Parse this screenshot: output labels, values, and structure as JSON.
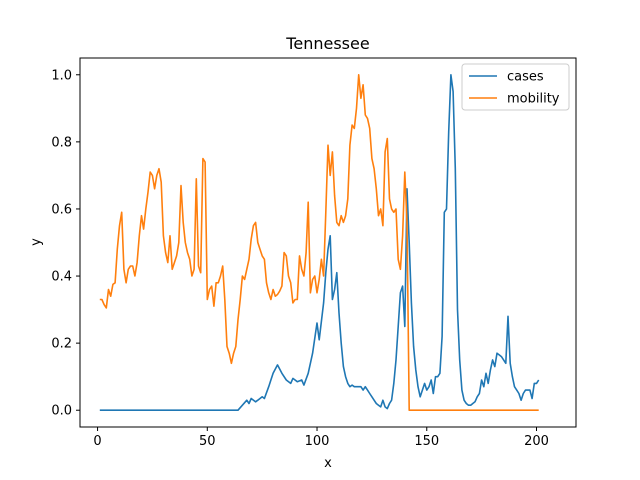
{
  "chart_data": {
    "type": "line",
    "title": "Tennessee",
    "xlabel": "x",
    "ylabel": "y",
    "xlim": [
      -8,
      218
    ],
    "ylim": [
      -0.05,
      1.05
    ],
    "xticks": [
      0,
      50,
      100,
      150,
      200
    ],
    "yticks": [
      0.0,
      0.2,
      0.4,
      0.6,
      0.8,
      1.0
    ],
    "xtick_labels": [
      "0",
      "50",
      "100",
      "150",
      "200"
    ],
    "ytick_labels": [
      "0.0",
      "0.2",
      "0.4",
      "0.6",
      "0.8",
      "1.0"
    ],
    "legend_position": "top-right",
    "colors": {
      "cases": "#1f77b4",
      "mobility": "#ff7f0e"
    },
    "series": [
      {
        "name": "cases",
        "points": [
          [
            1,
            0
          ],
          [
            64,
            0
          ],
          [
            66,
            0.015
          ],
          [
            68,
            0.03
          ],
          [
            69,
            0.02
          ],
          [
            70,
            0.035
          ],
          [
            72,
            0.025
          ],
          [
            73,
            0.03
          ],
          [
            75,
            0.04
          ],
          [
            76,
            0.035
          ],
          [
            78,
            0.07
          ],
          [
            80,
            0.11
          ],
          [
            82,
            0.135
          ],
          [
            84,
            0.11
          ],
          [
            86,
            0.09
          ],
          [
            88,
            0.08
          ],
          [
            89,
            0.095
          ],
          [
            91,
            0.085
          ],
          [
            93,
            0.09
          ],
          [
            94,
            0.075
          ],
          [
            96,
            0.11
          ],
          [
            98,
            0.17
          ],
          [
            100,
            0.26
          ],
          [
            101,
            0.21
          ],
          [
            103,
            0.32
          ],
          [
            104,
            0.41
          ],
          [
            105,
            0.48
          ],
          [
            106,
            0.52
          ],
          [
            107,
            0.33
          ],
          [
            108,
            0.36
          ],
          [
            109,
            0.41
          ],
          [
            110,
            0.29
          ],
          [
            111,
            0.2
          ],
          [
            112,
            0.13
          ],
          [
            113,
            0.1
          ],
          [
            114,
            0.08
          ],
          [
            115,
            0.07
          ],
          [
            116,
            0.075
          ],
          [
            117,
            0.07
          ],
          [
            118,
            0.07
          ],
          [
            120,
            0.07
          ],
          [
            121,
            0.06
          ],
          [
            122,
            0.07
          ],
          [
            123,
            0.06
          ],
          [
            124,
            0.05
          ],
          [
            125,
            0.04
          ],
          [
            126,
            0.03
          ],
          [
            127,
            0.02
          ],
          [
            128,
            0.015
          ],
          [
            129,
            0.01
          ],
          [
            130,
            0.03
          ],
          [
            131,
            0.01
          ],
          [
            132,
            0.005
          ],
          [
            133,
            0.02
          ],
          [
            134,
            0.03
          ],
          [
            135,
            0.08
          ],
          [
            136,
            0.15
          ],
          [
            137,
            0.25
          ],
          [
            138,
            0.35
          ],
          [
            139,
            0.37
          ],
          [
            140,
            0.25
          ],
          [
            141,
            0.66
          ],
          [
            142,
            0.5
          ],
          [
            143,
            0.32
          ],
          [
            144,
            0.19
          ],
          [
            145,
            0.12
          ],
          [
            146,
            0.07
          ],
          [
            147,
            0.04
          ],
          [
            148,
            0.06
          ],
          [
            149,
            0.08
          ],
          [
            150,
            0.06
          ],
          [
            151,
            0.07
          ],
          [
            152,
            0.09
          ],
          [
            153,
            0.05
          ],
          [
            154,
            0.1
          ],
          [
            155,
            0.1
          ],
          [
            156,
            0.11
          ],
          [
            157,
            0.22
          ],
          [
            158,
            0.59
          ],
          [
            159,
            0.6
          ],
          [
            160,
            0.83
          ],
          [
            161,
            1.0
          ],
          [
            162,
            0.95
          ],
          [
            163,
            0.72
          ],
          [
            164,
            0.3
          ],
          [
            165,
            0.15
          ],
          [
            166,
            0.06
          ],
          [
            167,
            0.03
          ],
          [
            168,
            0.02
          ],
          [
            169,
            0.015
          ],
          [
            170,
            0.015
          ],
          [
            171,
            0.02
          ],
          [
            172,
            0.025
          ],
          [
            173,
            0.04
          ],
          [
            174,
            0.05
          ],
          [
            175,
            0.09
          ],
          [
            176,
            0.07
          ],
          [
            177,
            0.11
          ],
          [
            178,
            0.08
          ],
          [
            179,
            0.12
          ],
          [
            180,
            0.15
          ],
          [
            181,
            0.13
          ],
          [
            182,
            0.17
          ],
          [
            183,
            0.165
          ],
          [
            184,
            0.16
          ],
          [
            185,
            0.15
          ],
          [
            186,
            0.14
          ],
          [
            187,
            0.28
          ],
          [
            188,
            0.14
          ],
          [
            189,
            0.1
          ],
          [
            190,
            0.07
          ],
          [
            191,
            0.06
          ],
          [
            192,
            0.05
          ],
          [
            193,
            0.03
          ],
          [
            194,
            0.05
          ],
          [
            195,
            0.06
          ],
          [
            196,
            0.06
          ],
          [
            197,
            0.06
          ],
          [
            198,
            0.035
          ],
          [
            199,
            0.08
          ],
          [
            200,
            0.08
          ],
          [
            201,
            0.09
          ]
        ]
      },
      {
        "name": "mobility",
        "points": [
          [
            1,
            0.33
          ],
          [
            2,
            0.33
          ],
          [
            3,
            0.315
          ],
          [
            4,
            0.305
          ],
          [
            5,
            0.36
          ],
          [
            6,
            0.34
          ],
          [
            7,
            0.375
          ],
          [
            8,
            0.38
          ],
          [
            9,
            0.48
          ],
          [
            10,
            0.55
          ],
          [
            11,
            0.59
          ],
          [
            12,
            0.42
          ],
          [
            13,
            0.38
          ],
          [
            14,
            0.42
          ],
          [
            15,
            0.43
          ],
          [
            16,
            0.43
          ],
          [
            17,
            0.4
          ],
          [
            18,
            0.44
          ],
          [
            19,
            0.52
          ],
          [
            20,
            0.58
          ],
          [
            21,
            0.54
          ],
          [
            22,
            0.6
          ],
          [
            23,
            0.65
          ],
          [
            24,
            0.71
          ],
          [
            25,
            0.7
          ],
          [
            26,
            0.66
          ],
          [
            27,
            0.7
          ],
          [
            28,
            0.72
          ],
          [
            29,
            0.68
          ],
          [
            30,
            0.52
          ],
          [
            31,
            0.47
          ],
          [
            32,
            0.44
          ],
          [
            33,
            0.52
          ],
          [
            34,
            0.42
          ],
          [
            35,
            0.44
          ],
          [
            36,
            0.46
          ],
          [
            37,
            0.5
          ],
          [
            38,
            0.67
          ],
          [
            39,
            0.56
          ],
          [
            40,
            0.5
          ],
          [
            41,
            0.47
          ],
          [
            42,
            0.45
          ],
          [
            43,
            0.4
          ],
          [
            44,
            0.42
          ],
          [
            45,
            0.69
          ],
          [
            46,
            0.43
          ],
          [
            47,
            0.41
          ],
          [
            48,
            0.75
          ],
          [
            49,
            0.74
          ],
          [
            50,
            0.33
          ],
          [
            51,
            0.36
          ],
          [
            52,
            0.37
          ],
          [
            53,
            0.31
          ],
          [
            54,
            0.38
          ],
          [
            55,
            0.38
          ],
          [
            56,
            0.4
          ],
          [
            57,
            0.43
          ],
          [
            58,
            0.33
          ],
          [
            59,
            0.19
          ],
          [
            60,
            0.17
          ],
          [
            61,
            0.14
          ],
          [
            62,
            0.17
          ],
          [
            63,
            0.19
          ],
          [
            64,
            0.27
          ],
          [
            65,
            0.33
          ],
          [
            66,
            0.4
          ],
          [
            67,
            0.39
          ],
          [
            68,
            0.42
          ],
          [
            69,
            0.45
          ],
          [
            70,
            0.51
          ],
          [
            71,
            0.55
          ],
          [
            72,
            0.56
          ],
          [
            73,
            0.5
          ],
          [
            74,
            0.48
          ],
          [
            75,
            0.46
          ],
          [
            76,
            0.45
          ],
          [
            77,
            0.38
          ],
          [
            78,
            0.35
          ],
          [
            79,
            0.33
          ],
          [
            80,
            0.36
          ],
          [
            81,
            0.34
          ],
          [
            82,
            0.345
          ],
          [
            83,
            0.355
          ],
          [
            84,
            0.37
          ],
          [
            85,
            0.47
          ],
          [
            86,
            0.46
          ],
          [
            87,
            0.4
          ],
          [
            88,
            0.38
          ],
          [
            89,
            0.32
          ],
          [
            90,
            0.33
          ],
          [
            91,
            0.33
          ],
          [
            92,
            0.46
          ],
          [
            93,
            0.42
          ],
          [
            94,
            0.4
          ],
          [
            95,
            0.47
          ],
          [
            96,
            0.62
          ],
          [
            97,
            0.35
          ],
          [
            98,
            0.39
          ],
          [
            99,
            0.4
          ],
          [
            100,
            0.35
          ],
          [
            101,
            0.39
          ],
          [
            102,
            0.45
          ],
          [
            103,
            0.4
          ],
          [
            104,
            0.59
          ],
          [
            105,
            0.79
          ],
          [
            106,
            0.7
          ],
          [
            107,
            0.77
          ],
          [
            108,
            0.64
          ],
          [
            109,
            0.56
          ],
          [
            110,
            0.55
          ],
          [
            111,
            0.58
          ],
          [
            112,
            0.56
          ],
          [
            113,
            0.58
          ],
          [
            114,
            0.63
          ],
          [
            115,
            0.79
          ],
          [
            116,
            0.85
          ],
          [
            117,
            0.84
          ],
          [
            118,
            0.9
          ],
          [
            119,
            1.0
          ],
          [
            120,
            0.93
          ],
          [
            121,
            0.97
          ],
          [
            122,
            0.88
          ],
          [
            123,
            0.87
          ],
          [
            124,
            0.84
          ],
          [
            125,
            0.75
          ],
          [
            126,
            0.72
          ],
          [
            127,
            0.66
          ],
          [
            128,
            0.58
          ],
          [
            129,
            0.6
          ],
          [
            130,
            0.55
          ],
          [
            131,
            0.77
          ],
          [
            132,
            0.81
          ],
          [
            133,
            0.63
          ],
          [
            134,
            0.6
          ],
          [
            135,
            0.59
          ],
          [
            136,
            0.6
          ],
          [
            137,
            0.45
          ],
          [
            138,
            0.42
          ],
          [
            139,
            0.52
          ],
          [
            140,
            0.71
          ],
          [
            141,
            0.56
          ],
          [
            142,
            0.0
          ],
          [
            143,
            0.0
          ],
          [
            201,
            0.0
          ]
        ]
      }
    ]
  }
}
